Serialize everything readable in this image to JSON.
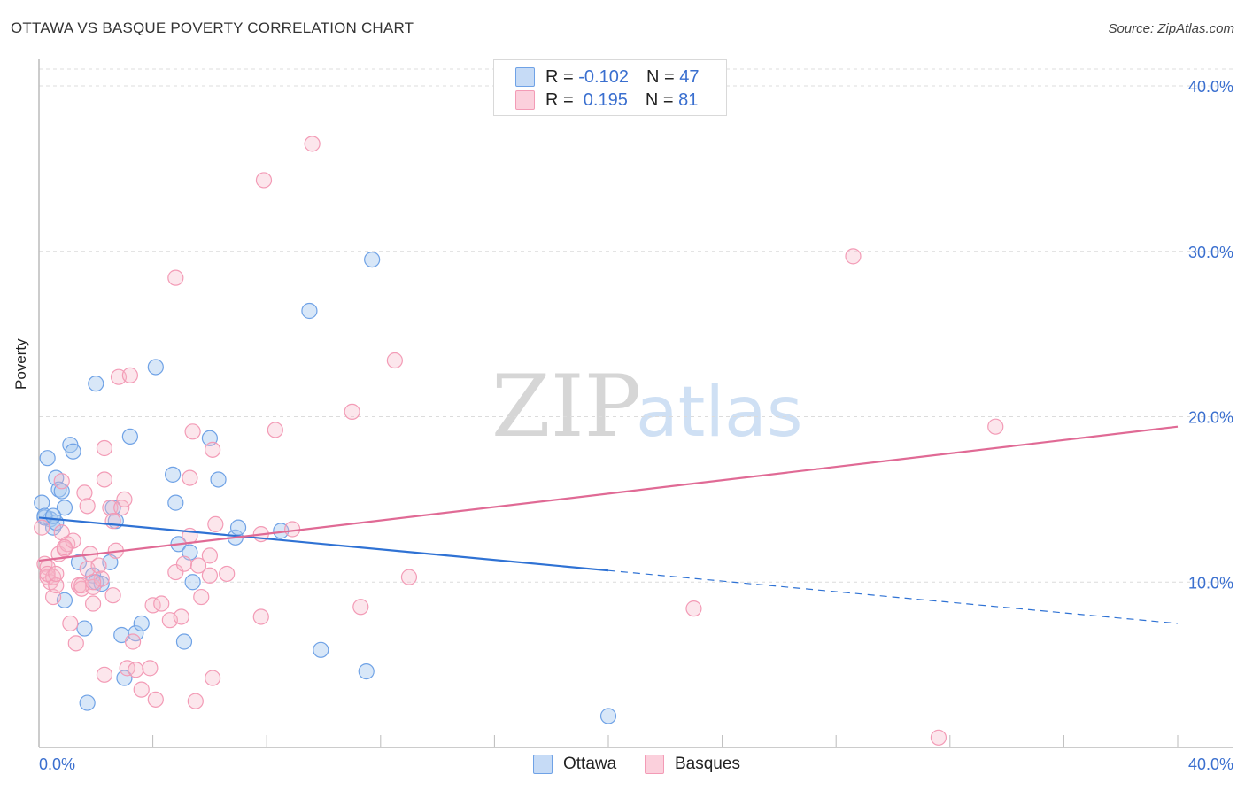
{
  "title": "OTTAWA VS BASQUE POVERTY CORRELATION CHART",
  "source": "Source: ZipAtlas.com",
  "watermark": {
    "zip": "ZIP",
    "atlas": "atlas"
  },
  "legend": {
    "r_label": "R = ",
    "n_label": "N = ",
    "rows": [
      {
        "r": "-0.102",
        "n": "47",
        "color": "#a9c9f0"
      },
      {
        "r": " 0.195",
        "n": "81",
        "color": "#f6b6c9"
      }
    ]
  },
  "bottom_legend": [
    {
      "label": "Ottawa",
      "color": "#a9c9f0"
    },
    {
      "label": "Basques",
      "color": "#f6b6c9"
    }
  ],
  "chart_data": {
    "type": "scatter",
    "xlabel": "",
    "ylabel": "Poverty",
    "xlim": [
      0,
      40
    ],
    "ylim": [
      0,
      40
    ],
    "x_tick_labels": {
      "left": "0.0%",
      "right": "40.0%"
    },
    "y_ticks": [
      10,
      20,
      30,
      40
    ],
    "y_tick_labels": [
      "10.0%",
      "20.0%",
      "30.0%",
      "40.0%"
    ],
    "grid": true,
    "series": [
      {
        "name": "Ottawa",
        "color": "#6fa2e6",
        "line_color": "#2f72d4",
        "trend": {
          "x0": 0,
          "y0": 13.9,
          "x1": 20.0,
          "y1": 10.7,
          "dash_to": 40.0,
          "dash_y": 7.5
        },
        "points": [
          [
            0.3,
            17.5
          ],
          [
            0.4,
            13.8
          ],
          [
            0.5,
            13.3
          ],
          [
            0.6,
            16.3
          ],
          [
            0.7,
            15.6
          ],
          [
            0.8,
            15.5
          ],
          [
            0.9,
            14.5
          ],
          [
            0.9,
            8.9
          ],
          [
            1.1,
            18.3
          ],
          [
            1.2,
            17.9
          ],
          [
            1.4,
            11.2
          ],
          [
            1.6,
            7.2
          ],
          [
            1.7,
            2.7
          ],
          [
            1.9,
            10.4
          ],
          [
            2.0,
            10.0
          ],
          [
            2.0,
            22.0
          ],
          [
            2.2,
            9.9
          ],
          [
            2.5,
            11.2
          ],
          [
            2.6,
            14.5
          ],
          [
            2.7,
            13.7
          ],
          [
            2.9,
            6.8
          ],
          [
            3.0,
            4.2
          ],
          [
            3.2,
            18.8
          ],
          [
            3.4,
            6.9
          ],
          [
            3.6,
            7.5
          ],
          [
            4.1,
            23.0
          ],
          [
            4.7,
            16.5
          ],
          [
            4.8,
            14.8
          ],
          [
            4.9,
            12.3
          ],
          [
            5.1,
            6.4
          ],
          [
            5.3,
            11.8
          ],
          [
            5.4,
            10.0
          ],
          [
            6.0,
            18.7
          ],
          [
            6.3,
            16.2
          ],
          [
            6.9,
            12.7
          ],
          [
            7.0,
            13.3
          ],
          [
            8.5,
            13.1
          ],
          [
            9.5,
            26.4
          ],
          [
            9.9,
            5.9
          ],
          [
            11.5,
            4.6
          ],
          [
            11.7,
            29.5
          ],
          [
            20.0,
            1.9
          ],
          [
            0.1,
            14.8
          ],
          [
            0.2,
            13.9
          ],
          [
            0.6,
            13.6
          ],
          [
            0.2,
            14.0
          ],
          [
            0.5,
            14.0
          ]
        ]
      },
      {
        "name": "Basques",
        "color": "#f39bb6",
        "line_color": "#e06a95",
        "trend": {
          "x0": 0,
          "y0": 11.3,
          "x1": 40.0,
          "y1": 19.4
        },
        "points": [
          [
            0.1,
            13.3
          ],
          [
            0.2,
            11.1
          ],
          [
            0.3,
            10.9
          ],
          [
            0.3,
            10.3
          ],
          [
            0.4,
            10.0
          ],
          [
            0.5,
            10.3
          ],
          [
            0.5,
            9.1
          ],
          [
            0.6,
            9.8
          ],
          [
            0.7,
            11.7
          ],
          [
            0.8,
            16.1
          ],
          [
            0.8,
            13.0
          ],
          [
            0.9,
            12.0
          ],
          [
            1.0,
            12.3
          ],
          [
            1.1,
            7.5
          ],
          [
            1.2,
            12.5
          ],
          [
            1.3,
            6.3
          ],
          [
            1.4,
            9.8
          ],
          [
            1.5,
            9.6
          ],
          [
            1.6,
            15.4
          ],
          [
            1.7,
            14.6
          ],
          [
            1.7,
            10.8
          ],
          [
            1.8,
            11.7
          ],
          [
            1.9,
            8.7
          ],
          [
            1.9,
            9.7
          ],
          [
            2.1,
            11.0
          ],
          [
            2.2,
            10.2
          ],
          [
            2.3,
            4.4
          ],
          [
            2.3,
            16.2
          ],
          [
            2.3,
            18.1
          ],
          [
            2.5,
            14.5
          ],
          [
            2.6,
            13.7
          ],
          [
            2.6,
            9.2
          ],
          [
            2.7,
            11.9
          ],
          [
            2.8,
            22.4
          ],
          [
            2.9,
            14.5
          ],
          [
            3.0,
            15.0
          ],
          [
            3.1,
            4.8
          ],
          [
            3.2,
            22.5
          ],
          [
            3.3,
            6.4
          ],
          [
            3.4,
            4.7
          ],
          [
            3.6,
            3.5
          ],
          [
            3.9,
            4.8
          ],
          [
            4.0,
            8.6
          ],
          [
            4.1,
            2.9
          ],
          [
            4.3,
            8.7
          ],
          [
            4.6,
            7.7
          ],
          [
            4.8,
            10.6
          ],
          [
            4.8,
            28.4
          ],
          [
            5.0,
            7.9
          ],
          [
            5.1,
            11.1
          ],
          [
            5.3,
            12.8
          ],
          [
            5.3,
            16.3
          ],
          [
            5.4,
            19.1
          ],
          [
            5.5,
            2.8
          ],
          [
            5.6,
            11.0
          ],
          [
            5.7,
            9.1
          ],
          [
            6.0,
            10.4
          ],
          [
            6.0,
            11.6
          ],
          [
            6.1,
            4.2
          ],
          [
            6.1,
            18.0
          ],
          [
            6.2,
            13.5
          ],
          [
            6.6,
            10.5
          ],
          [
            7.8,
            12.9
          ],
          [
            7.8,
            7.9
          ],
          [
            7.9,
            34.3
          ],
          [
            8.3,
            19.2
          ],
          [
            8.9,
            13.2
          ],
          [
            9.6,
            36.5
          ],
          [
            11.0,
            20.3
          ],
          [
            11.3,
            8.5
          ],
          [
            12.5,
            23.4
          ],
          [
            13.0,
            10.3
          ],
          [
            23.0,
            8.4
          ],
          [
            28.6,
            29.7
          ],
          [
            31.6,
            0.6
          ],
          [
            33.6,
            19.4
          ],
          [
            0.3,
            10.5
          ],
          [
            0.6,
            10.5
          ],
          [
            1.5,
            9.8
          ],
          [
            0.9,
            12.1
          ],
          [
            1.9,
            10.0
          ]
        ]
      }
    ]
  }
}
